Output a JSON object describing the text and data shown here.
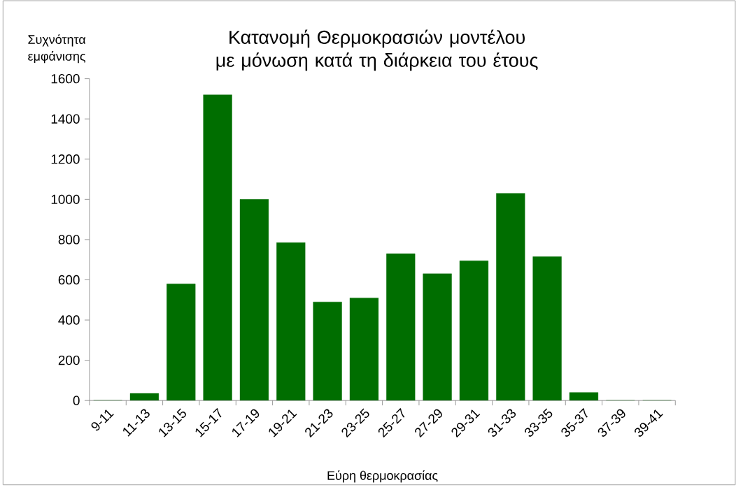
{
  "chart_data": {
    "type": "bar",
    "title": "Κατανομή Θερμοκρασιών μοντέλου με μόνωση κατά τη διάρκεια του έτους",
    "xlabel": "Εύρη θερμοκρασίας",
    "ylabel": "Συχνότητα εμφάνισης",
    "categories": [
      "9-11",
      "11-13",
      "13-15",
      "15-17",
      "17-19",
      "19-21",
      "21-23",
      "23-25",
      "25-27",
      "27-29",
      "29-31",
      "31-33",
      "33-35",
      "35-37",
      "37-39",
      "39-41"
    ],
    "values": [
      0,
      35,
      580,
      1520,
      1000,
      785,
      490,
      510,
      730,
      630,
      695,
      1030,
      715,
      40,
      0,
      0
    ],
    "color": "#006e00",
    "ylim": [
      0,
      1600
    ],
    "yticks": [
      0,
      200,
      400,
      600,
      800,
      1000,
      1200,
      1400,
      1600
    ]
  }
}
